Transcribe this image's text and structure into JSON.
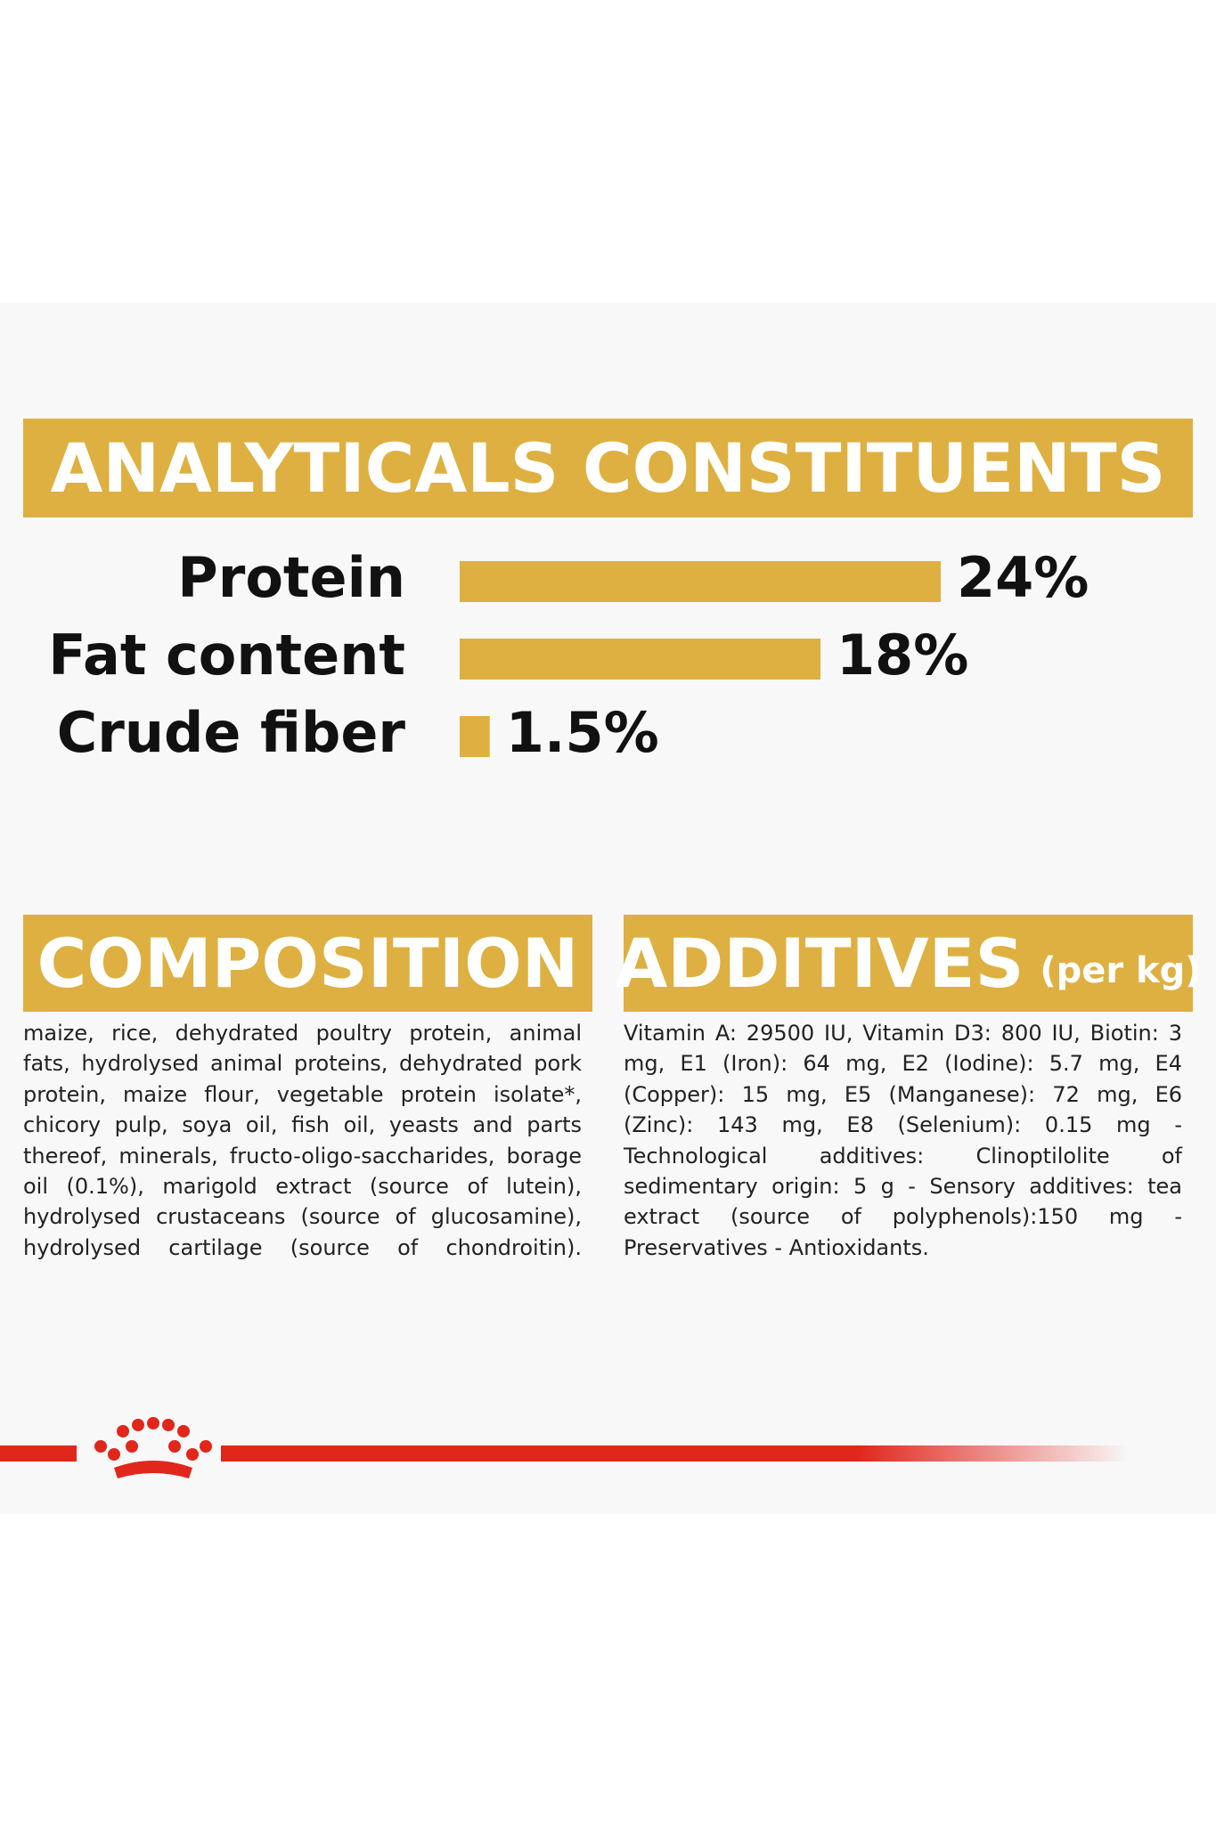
{
  "chart_data": {
    "type": "bar",
    "orientation": "horizontal",
    "title": "ANALYTICALS CONSTITUENTS",
    "categories": [
      "Protein",
      "Fat content",
      "Crude fiber"
    ],
    "values": [
      24,
      18,
      1.5
    ],
    "value_labels": [
      "24%",
      "18%",
      "1.5%"
    ],
    "color": "#deb041"
  },
  "composition": {
    "title": "COMPOSITION",
    "text": "maize, rice, dehydrated poultry protein, animal fats, hydrolysed animal proteins, dehydrated pork protein, maize flour, vegetable protein isolate*, chicory pulp, soya oil, fish oil, yeasts and parts thereof, minerals, fructo-oligo-saccharides, borage oil (0.1%), marigold extract (source of lutein), hydrolysed crustaceans (source of glucosamine), hydrolysed cartilage (source of chondroitin)."
  },
  "additives": {
    "title": "ADDITIVES",
    "subtitle": "(per kg)",
    "text": "Vitamin A: 29500 IU, Vitamin D3: 800 IU, Biotin: 3 mg, E1 (Iron): 64 mg, E2 (Iodine): 5.7 mg, E4 (Copper): 15 mg, E5 (Manganese): 72 mg, E6 (Zinc): 143 mg, E8 (Selenium): 0.15 mg - Technological additives: Clinoptilolite of sedimentary origin: 5 g - Sensory additives: tea extract (source of polyphenols):150 mg - Preservatives - Antioxidants."
  }
}
